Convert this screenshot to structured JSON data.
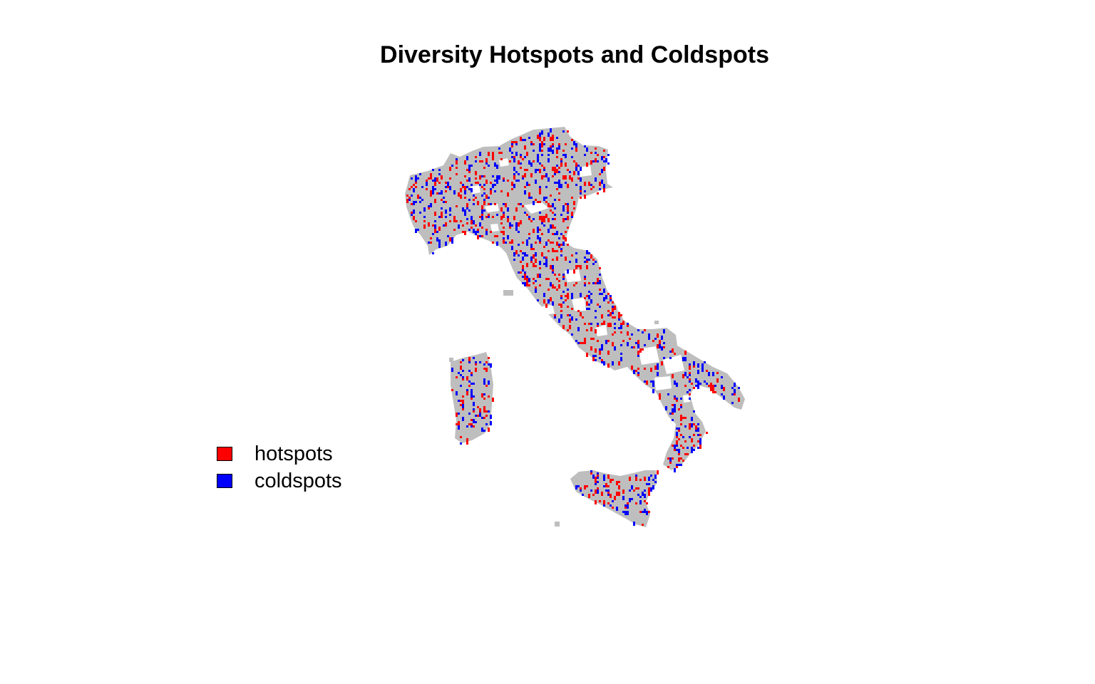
{
  "title": "Diversity Hotspots and Coldspots",
  "colors": {
    "land": "#bebebe",
    "hotspot": "#ff0000",
    "coldspot": "#0000ff",
    "background": "#ffffff"
  },
  "legend": {
    "position": "left",
    "items": [
      {
        "label": "hotspots",
        "color": "#ff0000"
      },
      {
        "label": "coldspots",
        "color": "#0000ff"
      }
    ]
  }
}
